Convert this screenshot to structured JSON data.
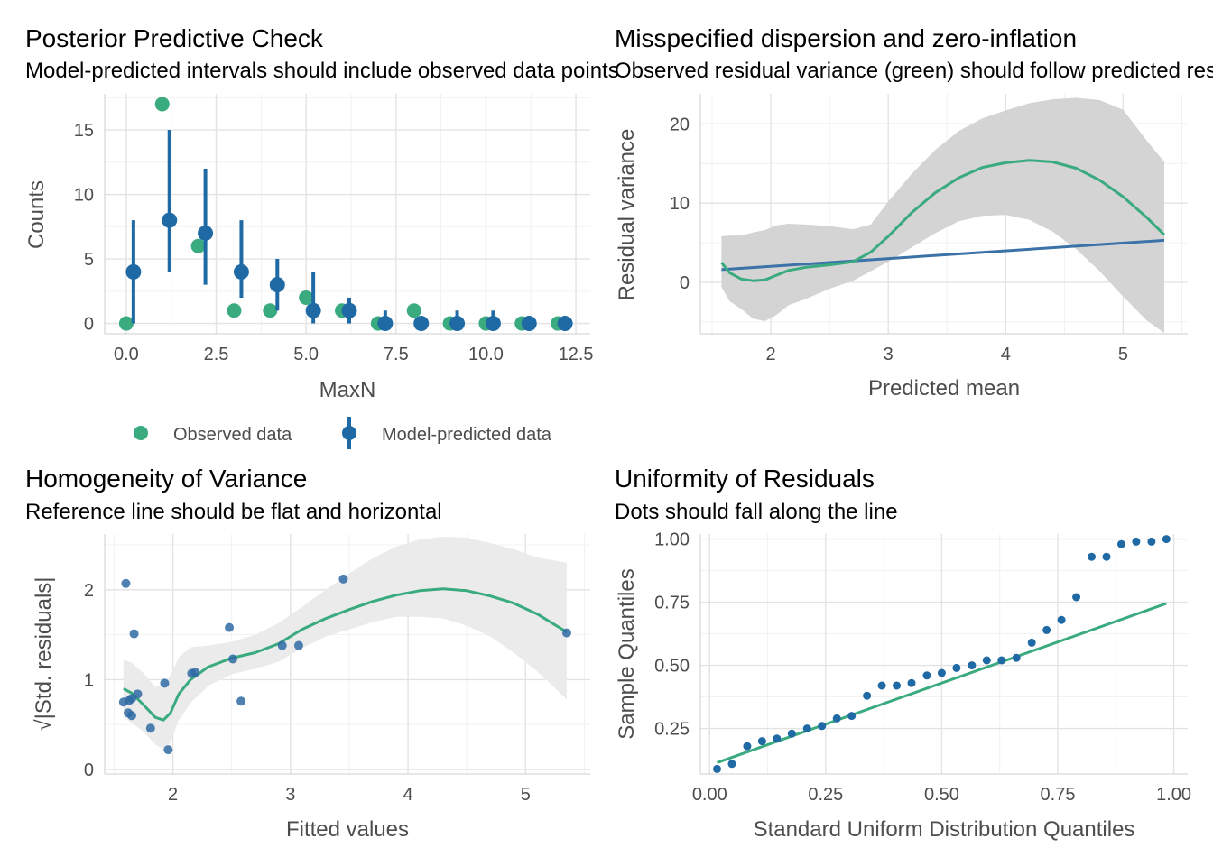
{
  "colors": {
    "observed": "#3aaa7f",
    "predicted": "#1f6aa5",
    "ref_line": "#3b72a8",
    "points": "#2f6aa5",
    "band_dark": "#d4d4d4",
    "band_light": "#ebebeb"
  },
  "chart_data": [
    {
      "type": "scatter",
      "title": "Posterior Predictive Check",
      "subtitle": "Model-predicted intervals should include observed data points",
      "xlabel": "MaxN",
      "ylabel": "Counts",
      "xlim": [
        -0.6,
        12.9
      ],
      "ylim": [
        -0.8,
        17.8
      ],
      "xticks": [
        0,
        2.5,
        5,
        7.5,
        10,
        12.5
      ],
      "xtick_labels": [
        "0.0",
        "2.5",
        "5.0",
        "7.5",
        "10.0",
        "12.5"
      ],
      "yticks": [
        0,
        5,
        10,
        15
      ],
      "ytick_labels": [
        "0",
        "5",
        "10",
        "15"
      ],
      "legend_position": "bottom",
      "legend": [
        "Observed data",
        "Model-predicted data"
      ],
      "observed": {
        "x": [
          0,
          1,
          2,
          3,
          4,
          5,
          6,
          7,
          8,
          9,
          10,
          11,
          12
        ],
        "y": [
          0,
          17,
          6,
          1,
          1,
          2,
          1,
          0,
          1,
          0,
          0,
          0,
          0
        ]
      },
      "predicted": {
        "x": [
          0.2,
          1.2,
          2.2,
          3.2,
          4.2,
          5.2,
          6.2,
          7.2,
          8.2,
          9.2,
          10.2,
          11.2,
          12.2
        ],
        "y": [
          4,
          8,
          7,
          4,
          3,
          1,
          1,
          0,
          0,
          0,
          0,
          0,
          0
        ],
        "lower": [
          0,
          4,
          3,
          2,
          1,
          0,
          0,
          0,
          0,
          0,
          0,
          0,
          0
        ],
        "upper": [
          8,
          15,
          12,
          8,
          5,
          4,
          2,
          1,
          0,
          1,
          1,
          0,
          0
        ]
      }
    },
    {
      "type": "line",
      "title": "Misspecified dispersion and zero-inflation",
      "subtitle": "Observed residual variance (green) should follow predicted residual variance (blue)",
      "xlabel": "Predicted mean",
      "ylabel": "Residual variance",
      "xlim": [
        1.4,
        5.55
      ],
      "ylim": [
        -6.5,
        23.8
      ],
      "xticks": [
        2,
        3,
        4,
        5
      ],
      "xtick_labels": [
        "2",
        "3",
        "4",
        "5"
      ],
      "yticks": [
        0,
        10,
        20
      ],
      "ytick_labels": [
        "0",
        "10",
        "20"
      ],
      "observed_smooth": {
        "x": [
          1.58,
          1.65,
          1.75,
          1.85,
          1.95,
          2.05,
          2.15,
          2.3,
          2.5,
          2.7,
          2.85,
          3.0,
          3.2,
          3.4,
          3.6,
          3.8,
          4.0,
          4.2,
          4.4,
          4.6,
          4.8,
          5.0,
          5.2,
          5.35
        ],
        "y": [
          2.5,
          1.2,
          0.4,
          0.2,
          0.3,
          0.9,
          1.5,
          1.9,
          2.2,
          2.6,
          3.8,
          5.8,
          8.8,
          11.3,
          13.2,
          14.5,
          15.1,
          15.4,
          15.2,
          14.4,
          12.9,
          10.8,
          8.2,
          6.0
        ],
        "lower": [
          -0.6,
          -2.4,
          -3.4,
          -4.6,
          -4.9,
          -4.1,
          -2.9,
          -2.1,
          -0.8,
          0.2,
          1.4,
          2.6,
          4.4,
          6.2,
          7.7,
          8.4,
          8.5,
          7.9,
          6.4,
          4.2,
          1.4,
          -1.8,
          -4.8,
          -6.4
        ],
        "upper": [
          5.8,
          5.9,
          5.9,
          6.3,
          6.6,
          7.2,
          7.4,
          7.3,
          7.1,
          6.7,
          7.3,
          10.2,
          13.7,
          16.7,
          19.1,
          20.7,
          21.7,
          22.6,
          23.1,
          23.3,
          23.0,
          21.8,
          17.9,
          15.2
        ]
      },
      "predicted_line": {
        "x": [
          1.58,
          5.35
        ],
        "y": [
          1.6,
          5.3
        ]
      }
    },
    {
      "type": "scatter",
      "title": "Homogeneity of Variance",
      "subtitle": "Reference line should be flat and horizontal",
      "xlabel": "Fitted values",
      "ylabel": "√|Std. residuals|",
      "xlim": [
        1.42,
        5.55
      ],
      "ylim": [
        -0.05,
        2.62
      ],
      "xticks": [
        2,
        3,
        4,
        5
      ],
      "xtick_labels": [
        "2",
        "3",
        "4",
        "5"
      ],
      "yticks": [
        0,
        1,
        2
      ],
      "ytick_labels": [
        "0",
        "1",
        "2"
      ],
      "points": {
        "x": [
          1.58,
          1.6,
          1.62,
          1.63,
          1.65,
          1.65,
          1.67,
          1.7,
          1.81,
          1.93,
          1.96,
          2.16,
          2.19,
          2.48,
          2.51,
          2.58,
          2.93,
          3.07,
          3.45,
          5.35
        ],
        "y": [
          0.75,
          2.07,
          0.63,
          0.77,
          0.6,
          0.79,
          1.51,
          0.84,
          0.46,
          0.96,
          0.22,
          1.07,
          1.08,
          1.58,
          1.23,
          0.76,
          1.38,
          1.38,
          2.12,
          1.52
        ]
      },
      "smooth": {
        "x": [
          1.58,
          1.65,
          1.75,
          1.85,
          1.92,
          1.98,
          2.05,
          2.15,
          2.3,
          2.5,
          2.7,
          2.9,
          3.1,
          3.3,
          3.5,
          3.7,
          3.9,
          4.1,
          4.3,
          4.5,
          4.7,
          4.9,
          5.1,
          5.35
        ],
        "y": [
          0.9,
          0.85,
          0.72,
          0.58,
          0.55,
          0.63,
          0.84,
          1.0,
          1.14,
          1.24,
          1.3,
          1.4,
          1.56,
          1.68,
          1.78,
          1.87,
          1.94,
          1.99,
          2.01,
          1.99,
          1.93,
          1.85,
          1.73,
          1.53
        ],
        "lower": [
          0.58,
          0.52,
          0.42,
          0.28,
          0.22,
          0.3,
          0.55,
          0.74,
          0.93,
          1.06,
          1.12,
          1.2,
          1.35,
          1.48,
          1.56,
          1.64,
          1.7,
          1.7,
          1.68,
          1.6,
          1.48,
          1.3,
          1.09,
          0.78
        ],
        "upper": [
          1.22,
          1.19,
          1.07,
          0.92,
          0.93,
          1.05,
          1.25,
          1.36,
          1.38,
          1.42,
          1.5,
          1.63,
          1.81,
          2.0,
          2.18,
          2.35,
          2.48,
          2.56,
          2.59,
          2.58,
          2.52,
          2.45,
          2.36,
          2.3
        ]
      }
    },
    {
      "type": "scatter",
      "title": "Uniformity of Residuals",
      "subtitle": "Dots should fall along the line",
      "xlabel": "Standard Uniform Distribution Quantiles",
      "ylabel": "Sample Quantiles",
      "xlim": [
        -0.02,
        1.03
      ],
      "ylim": [
        0.07,
        1.02
      ],
      "xticks": [
        0,
        0.25,
        0.5,
        0.75,
        1
      ],
      "xtick_labels": [
        "0.00",
        "0.25",
        "0.50",
        "0.75",
        "1.00"
      ],
      "yticks": [
        0.25,
        0.5,
        0.75,
        1
      ],
      "ytick_labels": [
        "0.25",
        "0.50",
        "0.75",
        "1.00"
      ],
      "points": {
        "x": [
          0.016,
          0.048,
          0.081,
          0.113,
          0.145,
          0.177,
          0.21,
          0.242,
          0.274,
          0.306,
          0.339,
          0.371,
          0.403,
          0.435,
          0.468,
          0.5,
          0.532,
          0.565,
          0.597,
          0.629,
          0.661,
          0.694,
          0.726,
          0.758,
          0.79,
          0.823,
          0.855,
          0.887,
          0.919,
          0.952,
          0.984
        ],
        "y": [
          0.09,
          0.11,
          0.18,
          0.2,
          0.21,
          0.23,
          0.25,
          0.26,
          0.29,
          0.3,
          0.38,
          0.42,
          0.42,
          0.43,
          0.46,
          0.47,
          0.49,
          0.5,
          0.52,
          0.52,
          0.53,
          0.59,
          0.64,
          0.68,
          0.77,
          0.93,
          0.93,
          0.98,
          0.99,
          0.99,
          1.0
        ]
      },
      "reference_line": {
        "x": [
          0.016,
          0.984
        ],
        "y": [
          0.115,
          0.745
        ]
      }
    }
  ]
}
